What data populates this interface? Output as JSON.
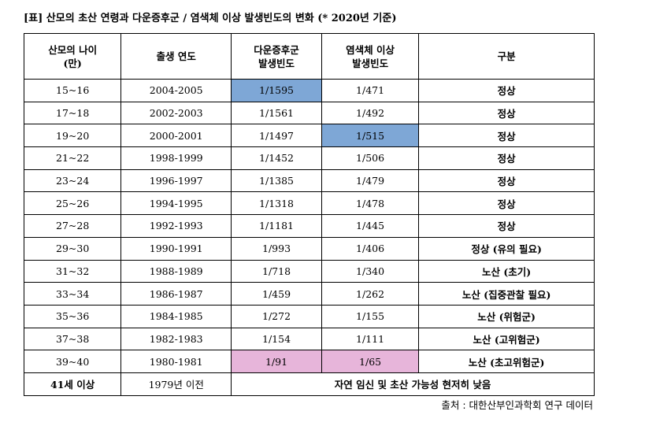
{
  "title": "[표] 산모의 초산 연령과 다운증후군 / 염색체 이상 발생빈도의 변화 (* 2020년 기준)",
  "table": {
    "headers": [
      "산모의 나이\n(만)",
      "출생 연도",
      "다운증후군\n발생빈도",
      "염색체 이상\n발생빈도",
      "구분"
    ],
    "rows": [
      [
        "15~16",
        "2004-2005",
        "1/1595",
        "1/471",
        "정상"
      ],
      [
        "17~18",
        "2002-2003",
        "1/1561",
        "1/492",
        "정상"
      ],
      [
        "19~20",
        "2000-2001",
        "1/1497",
        "1/515",
        "정상"
      ],
      [
        "21~22",
        "1998-1999",
        "1/1452",
        "1/506",
        "정상"
      ],
      [
        "23~24",
        "1996-1997",
        "1/1385",
        "1/479",
        "정상"
      ],
      [
        "25~26",
        "1994-1995",
        "1/1318",
        "1/478",
        "정상"
      ],
      [
        "27~28",
        "1992-1993",
        "1/1181",
        "1/445",
        "정상"
      ],
      [
        "29~30",
        "1990-1991",
        "1/993",
        "1/406",
        "정상 (유의 필요)"
      ],
      [
        "31~32",
        "1988-1989",
        "1/718",
        "1/340",
        "노산 (초기)"
      ],
      [
        "33~34",
        "1986-1987",
        "1/459",
        "1/262",
        "노산 (집중관찰 필요)"
      ],
      [
        "35~36",
        "1984-1985",
        "1/272",
        "1/155",
        "노산 (위험군)"
      ],
      [
        "37~38",
        "1982-1983",
        "1/154",
        "1/111",
        "노산 (고위험군)"
      ],
      [
        "39~40",
        "1980-1981",
        "1/91",
        "1/65",
        "노산 (초고위험군)"
      ]
    ],
    "last_row": [
      "41세 이상",
      "1979년 이전",
      "자연 임신 및 초산 가능성 현저히 낮음"
    ]
  },
  "source": "출처 : 대한산부인과학회 연구 데이터"
}
